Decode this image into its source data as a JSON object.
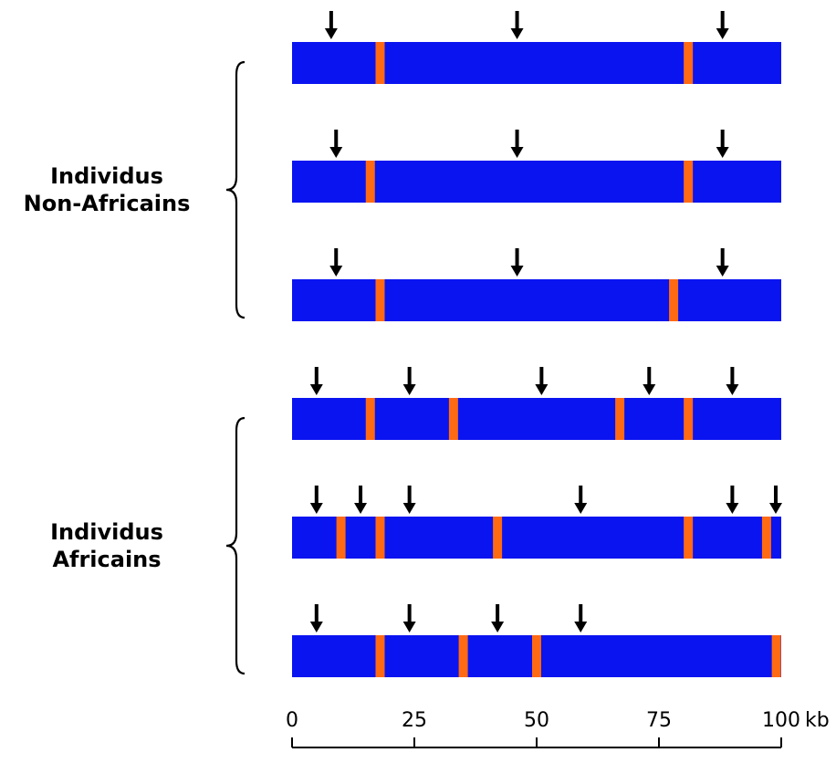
{
  "colors": {
    "chromosome": "#0a14f0",
    "recombination": "#ff6a13",
    "arrow": "#000000",
    "brace": "#000000",
    "axis": "#000000"
  },
  "icons": {
    "marker": "down-arrow-icon",
    "group": "curly-brace-icon"
  },
  "groups": [
    {
      "label_lines": [
        "Individus",
        "Non-Africains"
      ],
      "individuals": [
        {
          "recombinations": [
            18,
            81
          ],
          "markers": [
            8,
            46,
            88
          ]
        },
        {
          "recombinations": [
            16,
            81
          ],
          "markers": [
            9,
            46,
            88
          ]
        },
        {
          "recombinations": [
            18,
            78
          ],
          "markers": [
            9,
            46,
            88
          ]
        }
      ]
    },
    {
      "label_lines": [
        "Individus",
        "Africains"
      ],
      "individuals": [
        {
          "recombinations": [
            16,
            33,
            67,
            81
          ],
          "markers": [
            5,
            24,
            51,
            73,
            90
          ]
        },
        {
          "recombinations": [
            10,
            18,
            42,
            81,
            97
          ],
          "markers": [
            5,
            14,
            24,
            59,
            90,
            99
          ]
        },
        {
          "recombinations": [
            18,
            35,
            50,
            99
          ],
          "markers": [
            5,
            24,
            42,
            59
          ]
        }
      ]
    }
  ],
  "axis": {
    "range": [
      0,
      100
    ],
    "ticks": [
      0,
      25,
      50,
      75,
      100
    ],
    "tick_labels": [
      "0",
      "25",
      "50",
      "75",
      "100"
    ],
    "unit": "kb"
  }
}
